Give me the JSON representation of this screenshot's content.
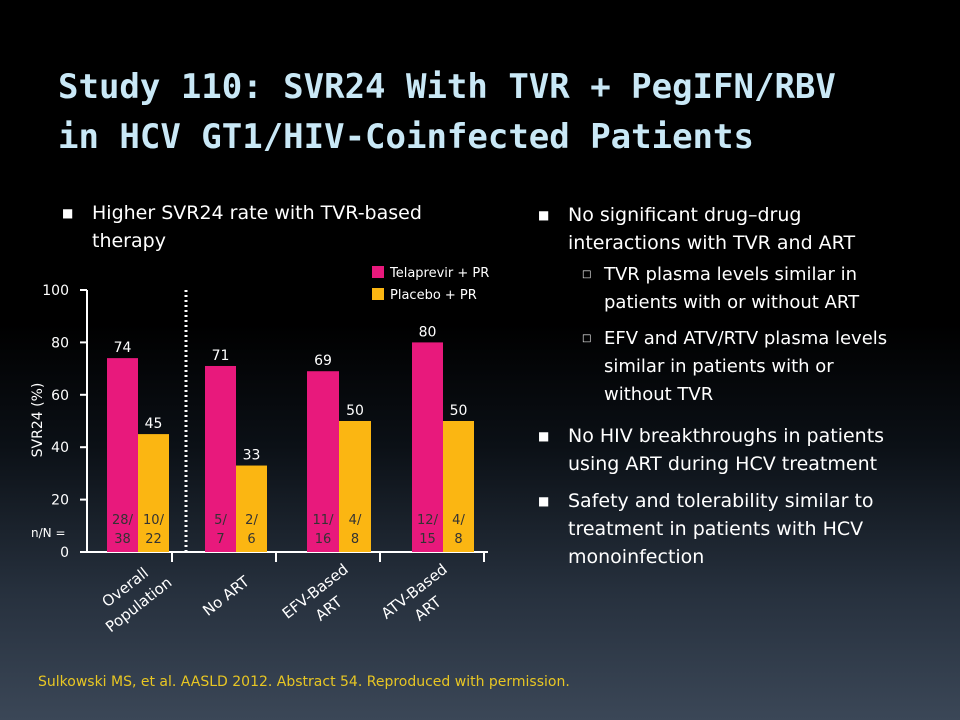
{
  "title": {
    "line1": "Study 110: SVR24 With TVR + PegIFN/RBV",
    "line2": "in HCV GT1/HIV-Coinfected Patients"
  },
  "left_bullet": {
    "line1": "Higher SVR24 rate with TVR-based",
    "line2": "therapy"
  },
  "right_bullets": [
    {
      "lines": [
        "No significant drug–drug",
        "interactions with TVR and ART"
      ]
    },
    {
      "lines": [
        "No HIV breakthroughs in patients",
        "using ART during HCV treatment"
      ]
    },
    {
      "lines": [
        "Safety and tolerability similar to",
        "treatment in patients with HCV",
        "monoinfection"
      ]
    }
  ],
  "sub_bullets": [
    {
      "lines": [
        "TVR plasma levels similar in",
        "patients with or without ART"
      ]
    },
    {
      "lines": [
        "EFV and ATV/RTV plasma levels",
        "similar in patients with or",
        "without TVR"
      ]
    }
  ],
  "citation": "Sulkowski MS, et al. AASLD 2012. Abstract 54. Reproduced with permission.",
  "chart_data": {
    "type": "bar",
    "ylabel": "SVR24 (%)",
    "ylim": [
      0,
      100
    ],
    "yticks": [
      "0",
      "20",
      "40",
      "60",
      "80",
      "100"
    ],
    "n_label": "n/N =",
    "categories": [
      {
        "lines": [
          "Overall",
          "Population"
        ]
      },
      {
        "lines": [
          "No ART"
        ]
      },
      {
        "lines": [
          "EFV-Based",
          "ART"
        ]
      },
      {
        "lines": [
          "ATV-Based",
          "ART"
        ]
      }
    ],
    "series": [
      {
        "name": "Telaprevir + PR",
        "color": "#e8197c",
        "values": [
          74,
          71,
          69,
          80
        ],
        "labels": [
          "74",
          "71",
          "69",
          "80"
        ],
        "n": [
          [
            "28/",
            "38"
          ],
          [
            "5/",
            "7"
          ],
          [
            "11/",
            "16"
          ],
          [
            "12/",
            "15"
          ]
        ]
      },
      {
        "name": "Placebo + PR",
        "color": "#fbb612",
        "values": [
          45,
          33,
          50,
          50
        ],
        "labels": [
          "45",
          "33",
          "50",
          "50"
        ],
        "n": [
          [
            "10/",
            "22"
          ],
          [
            "2/",
            "6"
          ],
          [
            "4/",
            "8"
          ],
          [
            "4/",
            "8"
          ]
        ]
      }
    ],
    "legend_position": "top-right",
    "grid": false
  }
}
